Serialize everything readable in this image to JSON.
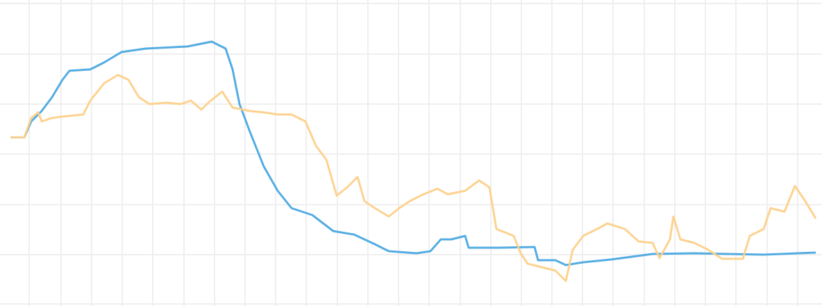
{
  "chart_data": {
    "type": "line",
    "xlim": [
      0,
      1184
    ],
    "ylim": [
      0,
      441
    ],
    "xticks": [
      42,
      88,
      132,
      176,
      220,
      265,
      309,
      353,
      397,
      441,
      486,
      530,
      574,
      618,
      663,
      707,
      751,
      795,
      839,
      883,
      928,
      972,
      1016,
      1060,
      1105,
      1149
    ],
    "yticks": [
      3,
      74,
      146,
      219,
      291,
      363,
      436
    ],
    "grid": true,
    "series": [
      {
        "color": "#4aa8e0",
        "x": [
          15,
          35,
          45,
          60,
          75,
          90,
          100,
          130,
          150,
          175,
          210,
          270,
          305,
          325,
          335,
          345,
          360,
          380,
          400,
          420,
          450,
          480,
          510,
          540,
          560,
          600,
          620,
          635,
          650,
          670,
          675,
          720,
          770,
          775,
          800,
          815,
          840,
          880,
          940,
          1000,
          1100,
          1175
        ],
        "values": [
          243,
          243,
          266,
          281,
          301,
          326,
          339,
          341,
          351,
          366,
          371,
          374,
          381,
          371,
          341,
          291,
          251,
          201,
          166,
          141,
          131,
          108,
          103,
          89,
          79,
          76,
          79,
          96,
          96,
          101,
          84,
          84,
          85,
          66,
          66,
          59,
          63,
          67,
          75,
          76,
          74,
          77
        ]
      },
      {
        "color": "#fdd08a",
        "x": [
          15,
          35,
          45,
          55,
          60,
          75,
          90,
          120,
          130,
          150,
          170,
          185,
          200,
          215,
          240,
          260,
          275,
          290,
          300,
          320,
          335,
          360,
          380,
          400,
          420,
          440,
          455,
          470,
          485,
          500,
          515,
          525,
          540,
          560,
          575,
          590,
          610,
          630,
          645,
          670,
          690,
          705,
          715,
          740,
          750,
          760,
          780,
          800,
          815,
          825,
          840,
          860,
          875,
          900,
          920,
          940,
          950,
          965,
          970,
          980,
          1000,
          1020,
          1040,
          1070,
          1080,
          1100,
          1110,
          1130,
          1145,
          1160,
          1175
        ],
        "values": [
          243,
          243,
          271,
          279,
          266,
          271,
          273,
          276,
          296,
          321,
          333,
          326,
          301,
          291,
          293,
          291,
          296,
          283,
          293,
          309,
          286,
          281,
          279,
          276,
          276,
          266,
          231,
          211,
          159,
          171,
          186,
          151,
          141,
          129,
          141,
          151,
          161,
          169,
          161,
          166,
          181,
          171,
          111,
          101,
          76,
          61,
          56,
          51,
          36,
          81,
          101,
          111,
          119,
          111,
          93,
          91,
          69,
          96,
          129,
          96,
          91,
          81,
          68,
          68,
          101,
          111,
          141,
          136,
          173,
          151,
          126
        ]
      }
    ]
  }
}
